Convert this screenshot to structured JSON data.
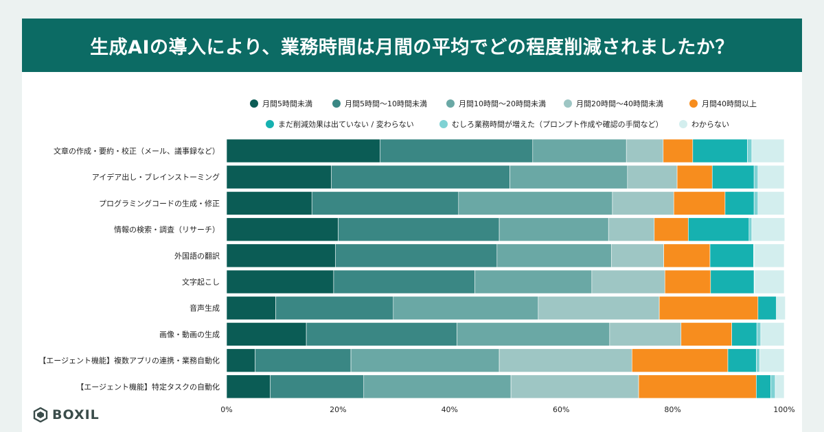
{
  "header": {
    "title": "生成AIの導入により、業務時間は月間の平均でどの程度削減されましたか？"
  },
  "brand": {
    "logo_text": "BOXIL"
  },
  "chart_data": {
    "type": "bar",
    "orientation": "horizontal",
    "stacked": true,
    "xlim": [
      0,
      100
    ],
    "x_ticks": [
      "0%",
      "20%",
      "40%",
      "60%",
      "80%",
      "100%"
    ],
    "legend_position": "top",
    "categories": [
      "文章の作成・要約・校正（メール、議事録など）",
      "アイデア出し・ブレインストーミング",
      "プログラミングコードの生成・修正",
      "情報の検索・調査（リサーチ）",
      "外国語の翻訳",
      "文字起こし",
      "音声生成",
      "画像・動画の生成",
      "【エージェント機能】複数アプリの連携・業務自動化",
      "【エージェント機能】特定タスクの自動化"
    ],
    "series": [
      {
        "name": "月間5時間未満",
        "color": "#0b5c55",
        "values": [
          27.5,
          18.8,
          15.3,
          20.0,
          19.5,
          19.2,
          8.8,
          14.3,
          5.1,
          7.8
        ]
      },
      {
        "name": "月間5時間〜10時間未満",
        "color": "#3a8784",
        "values": [
          27.4,
          32.0,
          26.3,
          28.9,
          29.0,
          25.3,
          21.1,
          27.0,
          17.2,
          16.8
        ]
      },
      {
        "name": "月間10時間〜20時間未満",
        "color": "#6aa8a5",
        "values": [
          16.8,
          21.1,
          27.6,
          19.6,
          20.5,
          21.0,
          26.0,
          27.4,
          26.6,
          26.4
        ]
      },
      {
        "name": "月間20時間〜40時間未満",
        "color": "#9ec6c4",
        "values": [
          6.6,
          8.9,
          11.0,
          8.2,
          9.4,
          13.1,
          21.7,
          12.8,
          23.8,
          22.9
        ]
      },
      {
        "name": "月間40時間以上",
        "color": "#f78d1e",
        "values": [
          5.3,
          6.3,
          9.2,
          6.1,
          8.3,
          8.2,
          17.7,
          9.1,
          17.2,
          21.1
        ]
      },
      {
        "name": "まだ削減効果は出ていない / 変わらない",
        "color": "#16b1b0",
        "values": [
          9.8,
          7.5,
          5.2,
          10.9,
          7.8,
          7.8,
          3.3,
          4.5,
          5.1,
          2.6
        ]
      },
      {
        "name": "むしろ業務時間が増えた（プロンプト作成や確認の手間など）",
        "color": "#7fd2d4",
        "values": [
          0.8,
          0.7,
          0.7,
          0.5,
          0.1,
          0.1,
          0.0,
          0.7,
          0.6,
          0.8
        ]
      },
      {
        "name": "わからない",
        "color": "#d3eeee",
        "values": [
          5.8,
          4.7,
          4.7,
          5.9,
          5.4,
          5.3,
          1.6,
          4.2,
          4.4,
          1.6
        ]
      }
    ]
  }
}
